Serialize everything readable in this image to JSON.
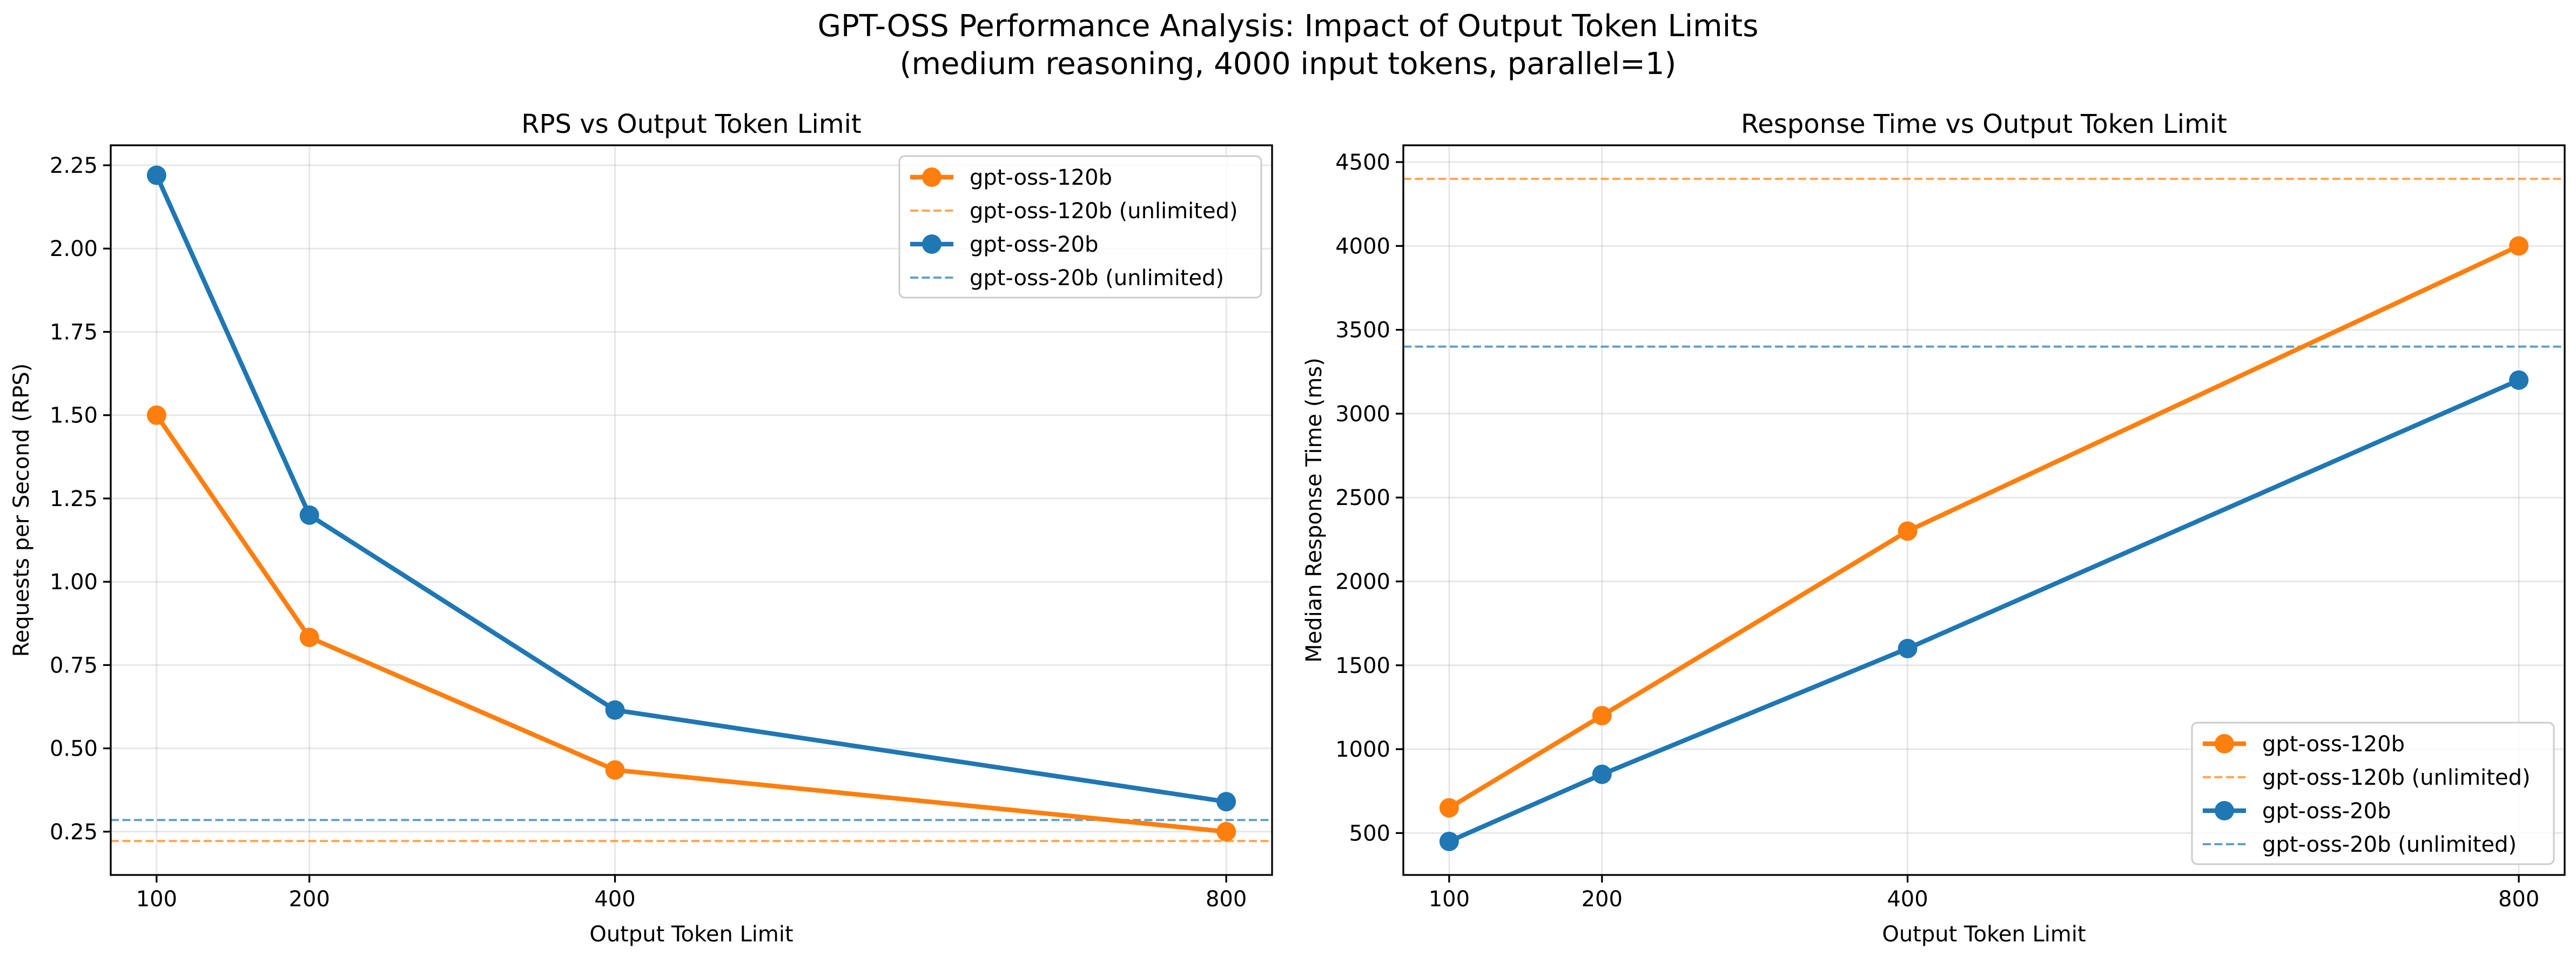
{
  "figure": {
    "title_line1": "GPT-OSS Performance Analysis: Impact of Output Token Limits",
    "title_line2": "(medium reasoning, 4000 input tokens, parallel=1)"
  },
  "colors": {
    "orange": "#ff7f0e",
    "blue": "#1f77b4"
  },
  "chart_data": [
    {
      "type": "line",
      "title": "RPS vs Output Token Limit",
      "xlabel": "Output Token Limit",
      "ylabel": "Requests per Second (RPS)",
      "x": [
        100,
        200,
        400,
        800
      ],
      "xticks": [
        "100",
        "200",
        "400",
        "800"
      ],
      "xlim": [
        70,
        830
      ],
      "yticks": [
        "0.25",
        "0.50",
        "0.75",
        "1.00",
        "1.25",
        "1.50",
        "1.75",
        "2.00",
        "2.25"
      ],
      "ylim": [
        0.12,
        2.31
      ],
      "grid": true,
      "legend_position": "upper right",
      "series": [
        {
          "name": "gpt-oss-120b",
          "color": "#ff7f0e",
          "values": [
            1.5,
            0.833,
            0.435,
            0.25
          ]
        },
        {
          "name": "gpt-oss-20b",
          "color": "#1f77b4",
          "values": [
            2.22,
            1.2,
            0.615,
            0.34
          ]
        }
      ],
      "reference_lines": [
        {
          "name": "gpt-oss-120b (unlimited)",
          "color": "#ff7f0e",
          "value": 0.222
        },
        {
          "name": "gpt-oss-20b (unlimited)",
          "color": "#1f77b4",
          "value": 0.285
        }
      ]
    },
    {
      "type": "line",
      "title": "Response Time vs Output Token Limit",
      "xlabel": "Output Token Limit",
      "ylabel": "Median Response Time (ms)",
      "x": [
        100,
        200,
        400,
        800
      ],
      "xticks": [
        "100",
        "200",
        "400",
        "800"
      ],
      "xlim": [
        70,
        830
      ],
      "yticks": [
        "500",
        "1000",
        "1500",
        "2000",
        "2500",
        "3000",
        "3500",
        "4000",
        "4500"
      ],
      "ylim": [
        250,
        4600
      ],
      "grid": true,
      "legend_position": "lower right",
      "series": [
        {
          "name": "gpt-oss-120b",
          "color": "#ff7f0e",
          "values": [
            650,
            1200,
            2300,
            4000
          ]
        },
        {
          "name": "gpt-oss-20b",
          "color": "#1f77b4",
          "values": [
            450,
            850,
            1600,
            3200
          ]
        }
      ],
      "reference_lines": [
        {
          "name": "gpt-oss-120b (unlimited)",
          "color": "#ff7f0e",
          "value": 4400
        },
        {
          "name": "gpt-oss-20b (unlimited)",
          "color": "#1f77b4",
          "value": 3400
        }
      ]
    }
  ]
}
